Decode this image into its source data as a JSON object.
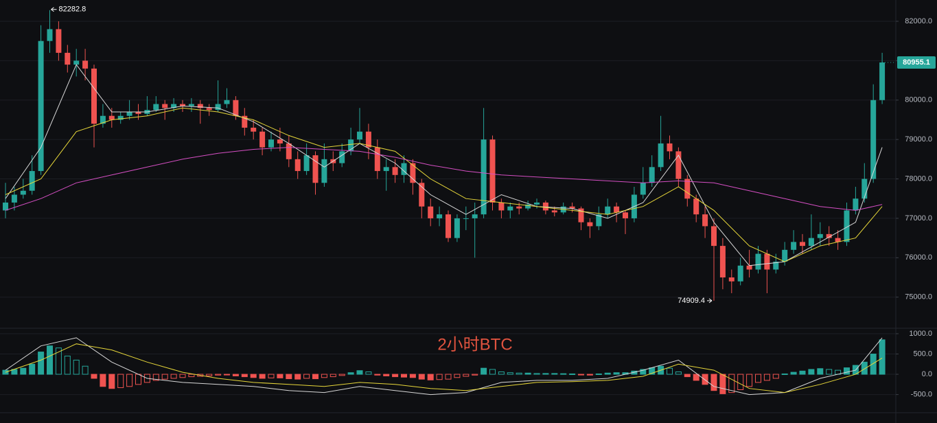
{
  "chart_data": {
    "type": "candlestick",
    "title": "2小时BTC",
    "up_color": "#26a69a",
    "down_color": "#ef5350",
    "grid": true,
    "ylim": [
      74350,
      82540
    ],
    "yticks": [
      {
        "value": 75000,
        "label": "75000.0"
      },
      {
        "value": 76000,
        "label": "76000.0"
      },
      {
        "value": 77000,
        "label": "77000.0"
      },
      {
        "value": 78000,
        "label": "78000.0"
      },
      {
        "value": 79000,
        "label": "79000.0"
      },
      {
        "value": 80000,
        "label": "80000.0"
      },
      {
        "value": 81000,
        "label": "81000.0"
      },
      {
        "value": 82000,
        "label": "82000.0"
      }
    ],
    "candles": [
      [
        77200,
        77900,
        77000,
        77400
      ],
      [
        77400,
        77800,
        77200,
        77600
      ],
      [
        77600,
        78000,
        77500,
        77700
      ],
      [
        77700,
        78600,
        77600,
        78200
      ],
      [
        78200,
        81900,
        78100,
        81500
      ],
      [
        81500,
        82282.8,
        81200,
        81800
      ],
      [
        81800,
        82000,
        81000,
        81200
      ],
      [
        81200,
        81400,
        80700,
        80900
      ],
      [
        80900,
        81300,
        80600,
        81000
      ],
      [
        81000,
        81300,
        80500,
        80800
      ],
      [
        80800,
        80900,
        78800,
        79400
      ],
      [
        79400,
        79900,
        79300,
        79600
      ],
      [
        79600,
        79800,
        79300,
        79500
      ],
      [
        79500,
        79700,
        79400,
        79600
      ],
      [
        79600,
        80000,
        79500,
        79700
      ],
      [
        79700,
        79900,
        79500,
        79650
      ],
      [
        79650,
        80100,
        79600,
        79750
      ],
      [
        79750,
        80100,
        79700,
        79900
      ],
      [
        79900,
        80000,
        79500,
        79800
      ],
      [
        79800,
        80050,
        79700,
        79900
      ],
      [
        79900,
        80000,
        79700,
        79850
      ],
      [
        79850,
        80050,
        79700,
        79900
      ],
      [
        79900,
        80000,
        79400,
        79800
      ],
      [
        79800,
        79900,
        79600,
        79750
      ],
      [
        79750,
        80500,
        79700,
        79900
      ],
      [
        79900,
        80300,
        79800,
        80000
      ],
      [
        80000,
        80100,
        79500,
        79600
      ],
      [
        79600,
        79800,
        79100,
        79300
      ],
      [
        79300,
        79500,
        79000,
        79200
      ],
      [
        79200,
        79300,
        78600,
        78800
      ],
      [
        78800,
        79200,
        78700,
        79000
      ],
      [
        79000,
        79300,
        78700,
        78900
      ],
      [
        78900,
        79100,
        78300,
        78500
      ],
      [
        78500,
        78700,
        78000,
        78200
      ],
      [
        78200,
        78900,
        78100,
        78600
      ],
      [
        78600,
        78700,
        77600,
        77900
      ],
      [
        77900,
        78900,
        77800,
        78500
      ],
      [
        78500,
        78700,
        78200,
        78400
      ],
      [
        78400,
        78900,
        78300,
        78700
      ],
      [
        78700,
        79300,
        78600,
        79000
      ],
      [
        79000,
        79800,
        78900,
        79200
      ],
      [
        79200,
        79400,
        78500,
        78800
      ],
      [
        78800,
        79000,
        78000,
        78200
      ],
      [
        78200,
        78500,
        77700,
        78300
      ],
      [
        78300,
        78500,
        77900,
        78100
      ],
      [
        78100,
        78600,
        77900,
        78400
      ],
      [
        78400,
        78500,
        77600,
        77900
      ],
      [
        77900,
        78000,
        77000,
        77300
      ],
      [
        77300,
        77500,
        76800,
        77000
      ],
      [
        77000,
        77300,
        76800,
        77100
      ],
      [
        77100,
        77200,
        76400,
        76500
      ],
      [
        76500,
        77100,
        76400,
        77000
      ],
      [
        77000,
        77300,
        76700,
        77000
      ],
      [
        77000,
        77400,
        76000,
        77100
      ],
      [
        77100,
        79800,
        77000,
        79000
      ],
      [
        79000,
        79100,
        77200,
        77400
      ],
      [
        77400,
        77500,
        77000,
        77200
      ],
      [
        77200,
        77400,
        77000,
        77300
      ],
      [
        77300,
        77400,
        77100,
        77250
      ],
      [
        77250,
        77450,
        77200,
        77350
      ],
      [
        77350,
        77500,
        77250,
        77400
      ],
      [
        77400,
        77450,
        77100,
        77200
      ],
      [
        77200,
        77300,
        77050,
        77150
      ],
      [
        77150,
        77400,
        77100,
        77300
      ],
      [
        77300,
        77400,
        77150,
        77250
      ],
      [
        77250,
        77300,
        76700,
        76900
      ],
      [
        76900,
        77000,
        76500,
        76800
      ],
      [
        76800,
        77300,
        76700,
        77100
      ],
      [
        77100,
        77500,
        77000,
        77300
      ],
      [
        77300,
        77400,
        76900,
        77150
      ],
      [
        77150,
        77200,
        76600,
        77000
      ],
      [
        77000,
        77800,
        76900,
        77600
      ],
      [
        77600,
        78300,
        77500,
        77900
      ],
      [
        77900,
        78600,
        77800,
        78300
      ],
      [
        78300,
        79600,
        78200,
        78900
      ],
      [
        78900,
        79100,
        78500,
        78700
      ],
      [
        78700,
        78800,
        77800,
        78000
      ],
      [
        78000,
        78100,
        77300,
        77500
      ],
      [
        77500,
        77600,
        76900,
        77100
      ],
      [
        77100,
        77300,
        76500,
        76800
      ],
      [
        76800,
        77000,
        74909.4,
        76300
      ],
      [
        76300,
        76500,
        75200,
        75500
      ],
      [
        75500,
        75700,
        75100,
        75400
      ],
      [
        75400,
        76000,
        75300,
        75800
      ],
      [
        75800,
        76200,
        75500,
        75700
      ],
      [
        75700,
        76300,
        75600,
        76100
      ],
      [
        76100,
        76200,
        75100,
        75700
      ],
      [
        75700,
        76100,
        75600,
        75900
      ],
      [
        75900,
        76400,
        75800,
        76200
      ],
      [
        76200,
        76700,
        76100,
        76400
      ],
      [
        76400,
        76600,
        76100,
        76300
      ],
      [
        76300,
        77100,
        76200,
        76500
      ],
      [
        76500,
        76900,
        76300,
        76600
      ],
      [
        76600,
        76800,
        76300,
        76500
      ],
      [
        76500,
        76700,
        76200,
        76400
      ],
      [
        76400,
        77400,
        76300,
        77200
      ],
      [
        77200,
        77800,
        77100,
        77500
      ],
      [
        77500,
        78400,
        77400,
        78000
      ],
      [
        78000,
        80400,
        77900,
        80000
      ],
      [
        80000,
        81200,
        79900,
        80955.1
      ]
    ],
    "lines": [
      {
        "color": "#d8d8d8",
        "x": [
          0,
          4,
          8,
          12,
          16,
          20,
          24,
          28,
          32,
          36,
          40,
          44,
          48,
          52,
          56,
          60,
          64,
          68,
          72,
          76,
          80,
          84,
          88,
          92,
          96,
          99
        ],
        "values": [
          77500,
          78800,
          80900,
          79700,
          79700,
          79850,
          79800,
          79450,
          78900,
          78300,
          78900,
          78400,
          77600,
          77100,
          77600,
          77300,
          77250,
          77000,
          77400,
          78600,
          76900,
          75800,
          75900,
          76400,
          76900,
          78800
        ]
      },
      {
        "color": "#e8d83a",
        "x": [
          0,
          4,
          8,
          12,
          16,
          20,
          24,
          28,
          32,
          36,
          40,
          44,
          48,
          52,
          56,
          60,
          64,
          68,
          72,
          76,
          80,
          84,
          88,
          92,
          96,
          99
        ],
        "values": [
          77600,
          78000,
          79200,
          79500,
          79600,
          79800,
          79700,
          79500,
          79100,
          78800,
          78900,
          78700,
          78000,
          77500,
          77400,
          77300,
          77200,
          77100,
          77300,
          77800,
          77200,
          76300,
          75900,
          76300,
          76500,
          77300
        ]
      },
      {
        "color": "#d64fc4",
        "x": [
          0,
          4,
          8,
          12,
          16,
          20,
          24,
          28,
          32,
          36,
          40,
          44,
          48,
          52,
          56,
          60,
          64,
          68,
          72,
          76,
          80,
          84,
          88,
          92,
          96,
          99
        ],
        "values": [
          77200,
          77500,
          77900,
          78100,
          78300,
          78500,
          78650,
          78750,
          78800,
          78750,
          78700,
          78550,
          78350,
          78200,
          78100,
          78050,
          78000,
          77950,
          77900,
          77950,
          77900,
          77700,
          77500,
          77300,
          77200,
          77350
        ]
      }
    ],
    "macd": {
      "type": "bar",
      "ylim": [
        -930,
        1135
      ],
      "yticks": [
        {
          "value": -500,
          "label": "-500.0"
        },
        {
          "value": 0,
          "label": "0.0"
        },
        {
          "value": 500,
          "label": "500.0"
        },
        {
          "value": 1000,
          "label": "1000.0"
        }
      ],
      "values": [
        100,
        120,
        150,
        250,
        550,
        700,
        650,
        450,
        350,
        200,
        -100,
        -300,
        -350,
        -330,
        -300,
        -250,
        -200,
        -150,
        -120,
        -100,
        -80,
        -60,
        -50,
        -40,
        -20,
        -10,
        -40,
        -60,
        -80,
        -100,
        -90,
        -90,
        -110,
        -120,
        -100,
        -110,
        -80,
        -60,
        -30,
        40,
        90,
        60,
        -20,
        -40,
        -60,
        -70,
        -80,
        -120,
        -140,
        -130,
        -120,
        -80,
        -50,
        -20,
        150,
        120,
        60,
        40,
        30,
        30,
        20,
        20,
        20,
        15,
        10,
        -10,
        -20,
        10,
        30,
        40,
        40,
        80,
        120,
        160,
        200,
        150,
        60,
        -60,
        -150,
        -250,
        -400,
        -480,
        -450,
        -380,
        -300,
        -200,
        -150,
        -100,
        10,
        50,
        80,
        120,
        140,
        120,
        100,
        160,
        220,
        300,
        500,
        850
      ],
      "lines": [
        {
          "color": "#d8d8d8",
          "x": [
            0,
            4,
            8,
            12,
            16,
            20,
            24,
            28,
            32,
            36,
            40,
            44,
            48,
            52,
            56,
            60,
            64,
            68,
            72,
            76,
            80,
            84,
            88,
            92,
            96,
            99
          ],
          "values": [
            100,
            700,
            900,
            300,
            -100,
            -200,
            -250,
            -300,
            -400,
            -450,
            -300,
            -400,
            -500,
            -450,
            -200,
            -150,
            -150,
            -100,
            100,
            350,
            -300,
            -500,
            -450,
            -100,
            100,
            900
          ]
        },
        {
          "color": "#e8d83a",
          "x": [
            0,
            4,
            8,
            12,
            16,
            20,
            24,
            28,
            32,
            36,
            40,
            44,
            48,
            52,
            56,
            60,
            64,
            68,
            72,
            76,
            80,
            84,
            88,
            92,
            96,
            99
          ],
          "values": [
            50,
            350,
            750,
            600,
            300,
            50,
            -100,
            -200,
            -250,
            -300,
            -200,
            -250,
            -350,
            -400,
            -300,
            -200,
            -180,
            -150,
            -50,
            250,
            100,
            -350,
            -450,
            -250,
            0,
            400
          ]
        }
      ]
    }
  }
}
